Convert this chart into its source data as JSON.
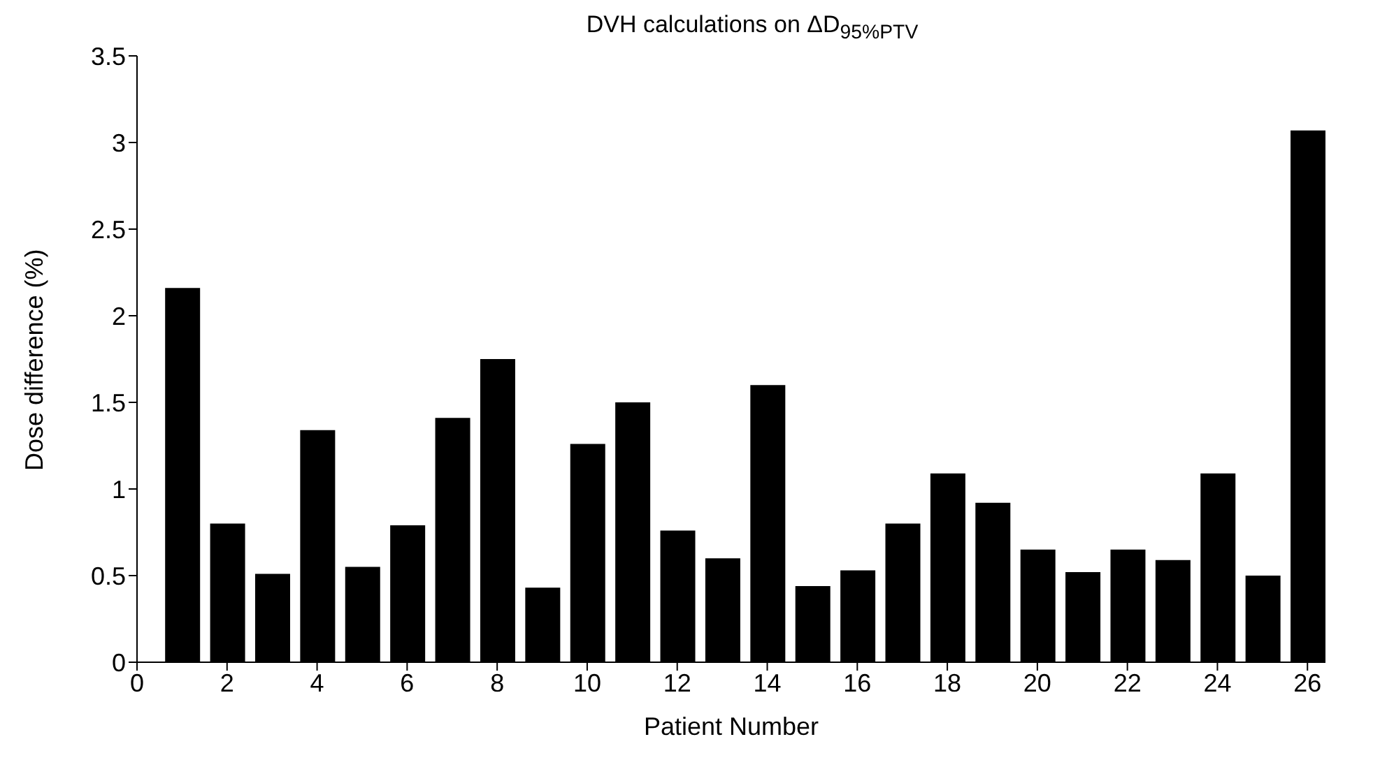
{
  "chart_data": {
    "type": "bar",
    "title": "DVH calculations on ΔD$_{95%PTV}$",
    "xlabel": "Patient Number",
    "ylabel": "Dose difference (%)",
    "x": [
      1,
      2,
      3,
      4,
      5,
      6,
      7,
      8,
      9,
      10,
      11,
      12,
      13,
      14,
      15,
      16,
      17,
      18,
      19,
      20,
      21,
      22,
      23,
      24,
      25,
      26
    ],
    "values": [
      2.16,
      0.8,
      0.51,
      1.34,
      0.55,
      0.79,
      1.41,
      1.75,
      0.43,
      1.26,
      1.5,
      0.76,
      0.6,
      1.6,
      0.44,
      0.53,
      0.8,
      1.09,
      0.92,
      0.65,
      0.52,
      0.65,
      0.59,
      1.09,
      0.5,
      3.07
    ],
    "color": "#000000",
    "xlim": [
      0,
      26.4
    ],
    "xticks": [
      0,
      2,
      4,
      6,
      8,
      10,
      12,
      14,
      16,
      18,
      20,
      22,
      24,
      26
    ],
    "ylim": [
      0,
      3.5
    ],
    "yticks": [
      0,
      0.5,
      1,
      1.5,
      2,
      2.5,
      3,
      3.5
    ],
    "grid": false,
    "legend": false
  }
}
